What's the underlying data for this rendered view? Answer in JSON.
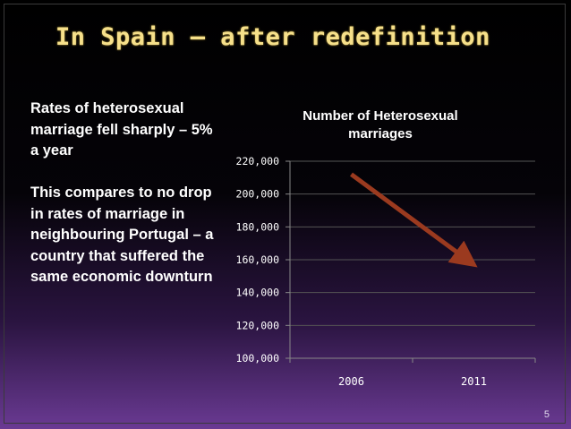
{
  "slide": {
    "title": "In Spain – after redefinition",
    "paragraphs": [
      "Rates of heterosexual marriage fell sharply – 5% a year",
      "This compares to no drop in rates of marriage in neighbouring Portugal – a country that suffered the same economic downturn"
    ],
    "page_number": "5"
  },
  "chart_data": {
    "type": "line",
    "title": "Number of Heterosexual marriages",
    "categories": [
      "2006",
      "2011"
    ],
    "series": [
      {
        "values": [
          212000,
          161000
        ]
      }
    ],
    "ylim": [
      100000,
      220000
    ],
    "yticks": [
      "100,000",
      "120,000",
      "140,000",
      "160,000",
      "180,000",
      "200,000",
      "220,000"
    ],
    "ytick_values": [
      100000,
      120000,
      140000,
      160000,
      180000,
      200000,
      220000
    ],
    "grid": true,
    "annotation": "arrow",
    "colors": {
      "arrow": "#9b3a1f",
      "grid": "#555555",
      "axis": "#888888",
      "tick_text": "#ffffff"
    }
  }
}
